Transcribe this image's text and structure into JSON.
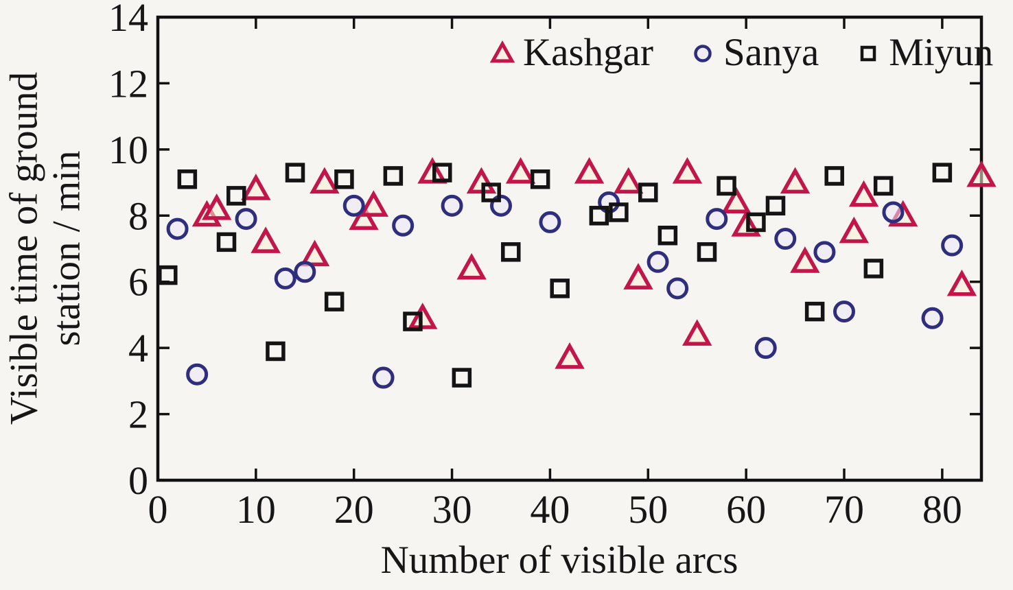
{
  "figure": {
    "background": "#f6f5f2",
    "frame_color": "#111111"
  },
  "chart_data": {
    "type": "scatter",
    "title": "",
    "xlabel": "Number of visible arcs",
    "ylabel": "Visible time of ground station / min",
    "ylabel_lines": [
      "Visible time of ground",
      "station / min"
    ],
    "xlim": [
      0,
      84
    ],
    "ylim": [
      0,
      14
    ],
    "xticks": [
      0,
      10,
      20,
      30,
      40,
      50,
      60,
      70,
      80
    ],
    "yticks": [
      0,
      2,
      4,
      6,
      8,
      10,
      12,
      14
    ],
    "grid": false,
    "legend_position": "top-inside",
    "series": [
      {
        "name": "Kashgar",
        "marker": "triangle",
        "color": "#c2164a",
        "points": [
          [
            5,
            8.0
          ],
          [
            6,
            8.2
          ],
          [
            10,
            8.8
          ],
          [
            11,
            7.2
          ],
          [
            16,
            6.8
          ],
          [
            17,
            9.0
          ],
          [
            21,
            7.9
          ],
          [
            22,
            8.3
          ],
          [
            27,
            4.9
          ],
          [
            28,
            9.3
          ],
          [
            32,
            6.4
          ],
          [
            33,
            9.0
          ],
          [
            37,
            9.3
          ],
          [
            42,
            3.7
          ],
          [
            44,
            9.3
          ],
          [
            48,
            9.0
          ],
          [
            49,
            6.1
          ],
          [
            54,
            9.3
          ],
          [
            55,
            4.4
          ],
          [
            59,
            8.4
          ],
          [
            60,
            7.7
          ],
          [
            65,
            9.0
          ],
          [
            66,
            6.6
          ],
          [
            71,
            7.5
          ],
          [
            72,
            8.6
          ],
          [
            76,
            8.0
          ],
          [
            82,
            5.9
          ],
          [
            84,
            9.2
          ]
        ]
      },
      {
        "name": "Sanya",
        "marker": "circle",
        "color": "#2e2e7c",
        "points": [
          [
            2,
            7.6
          ],
          [
            4,
            3.2
          ],
          [
            9,
            7.9
          ],
          [
            13,
            6.1
          ],
          [
            15,
            6.3
          ],
          [
            20,
            8.3
          ],
          [
            23,
            3.1
          ],
          [
            25,
            7.7
          ],
          [
            30,
            8.3
          ],
          [
            35,
            8.3
          ],
          [
            40,
            7.8
          ],
          [
            46,
            8.4
          ],
          [
            51,
            6.6
          ],
          [
            53,
            5.8
          ],
          [
            57,
            7.9
          ],
          [
            62,
            4.0
          ],
          [
            64,
            7.3
          ],
          [
            68,
            6.9
          ],
          [
            70,
            5.1
          ],
          [
            75,
            8.1
          ],
          [
            79,
            4.9
          ],
          [
            81,
            7.1
          ]
        ]
      },
      {
        "name": "Miyun",
        "marker": "square",
        "color": "#141414",
        "points": [
          [
            1,
            6.2
          ],
          [
            3,
            9.1
          ],
          [
            7,
            7.2
          ],
          [
            8,
            8.6
          ],
          [
            12,
            3.9
          ],
          [
            14,
            9.3
          ],
          [
            18,
            5.4
          ],
          [
            19,
            9.1
          ],
          [
            24,
            9.2
          ],
          [
            26,
            4.8
          ],
          [
            29,
            9.3
          ],
          [
            31,
            3.1
          ],
          [
            34,
            8.7
          ],
          [
            36,
            6.9
          ],
          [
            39,
            9.1
          ],
          [
            41,
            5.8
          ],
          [
            45,
            8.0
          ],
          [
            47,
            8.1
          ],
          [
            50,
            8.7
          ],
          [
            52,
            7.4
          ],
          [
            56,
            6.9
          ],
          [
            58,
            8.9
          ],
          [
            61,
            7.8
          ],
          [
            63,
            8.3
          ],
          [
            67,
            5.1
          ],
          [
            69,
            9.2
          ],
          [
            73,
            6.4
          ],
          [
            74,
            8.9
          ],
          [
            80,
            9.3
          ]
        ]
      }
    ]
  }
}
